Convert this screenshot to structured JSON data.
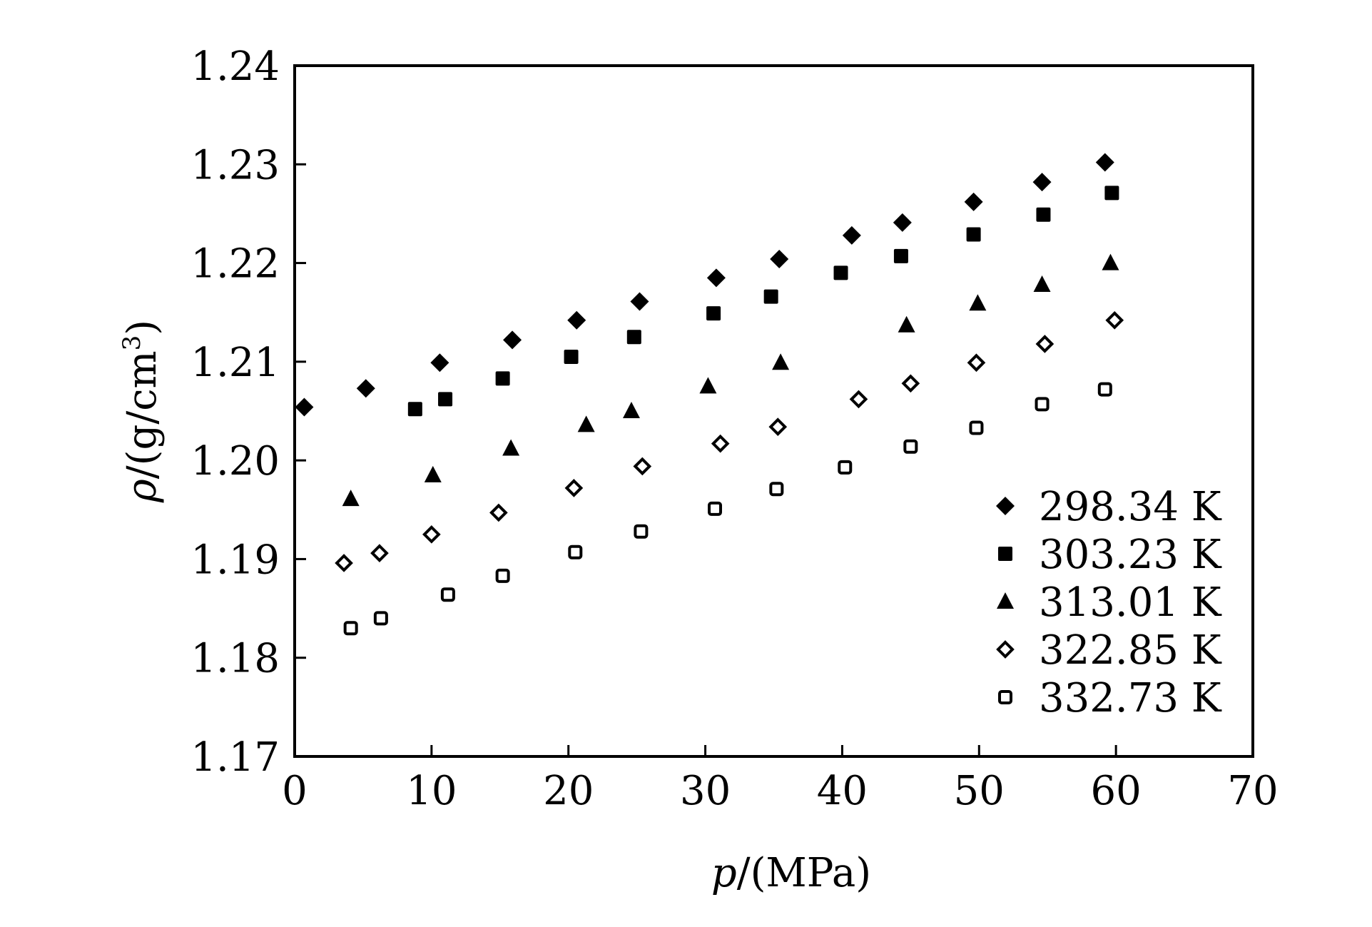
{
  "chart_data": {
    "type": "scatter",
    "title": "",
    "xlabel": {
      "symbol": "p",
      "unit": "/(MPa)"
    },
    "ylabel": {
      "symbol": "ρ",
      "unit_prefix": "/(g/cm",
      "unit_exp": "3",
      "unit_suffix": ")"
    },
    "xlim": [
      0,
      70
    ],
    "ylim": [
      1.17,
      1.24
    ],
    "xticks": [
      "0",
      "10",
      "20",
      "30",
      "40",
      "50",
      "60",
      "70"
    ],
    "yticks": [
      "1.17",
      "1.18",
      "1.19",
      "1.20",
      "1.21",
      "1.22",
      "1.23",
      "1.24"
    ],
    "grid": false,
    "legend_position": "bottom-right",
    "series": [
      {
        "name": "298.34 K",
        "marker": "filled-diamond",
        "x": [
          0.7,
          5.2,
          10.6,
          15.9,
          20.6,
          25.2,
          30.8,
          35.4,
          40.7,
          44.4,
          49.6,
          54.6,
          59.2
        ],
        "y": [
          1.2054,
          1.2073,
          1.2099,
          1.2122,
          1.2142,
          1.2161,
          1.2185,
          1.2204,
          1.2228,
          1.2241,
          1.2262,
          1.2282,
          1.2302
        ]
      },
      {
        "name": "303.23 K",
        "marker": "filled-square",
        "x": [
          8.8,
          11.0,
          15.2,
          20.2,
          24.8,
          30.6,
          34.8,
          39.9,
          44.3,
          49.6,
          54.7,
          59.7
        ],
        "y": [
          1.2052,
          1.2062,
          1.2083,
          1.2105,
          1.2125,
          1.2149,
          1.2166,
          1.219,
          1.2207,
          1.2229,
          1.2249,
          1.2271
        ]
      },
      {
        "name": "313.01 K",
        "marker": "filled-triangle",
        "x": [
          4.1,
          10.1,
          15.8,
          21.3,
          24.6,
          30.2,
          35.5,
          44.7,
          49.9,
          54.6,
          59.6
        ],
        "y": [
          1.1961,
          1.1985,
          1.2012,
          1.2036,
          1.205,
          1.2075,
          1.2099,
          1.2137,
          1.2159,
          1.2178,
          1.22
        ]
      },
      {
        "name": "322.85 K",
        "marker": "open-diamond",
        "x": [
          3.6,
          6.2,
          10.0,
          14.9,
          20.4,
          25.4,
          31.1,
          35.3,
          41.2,
          45.0,
          49.8,
          54.8,
          59.9
        ],
        "y": [
          1.1896,
          1.1906,
          1.1925,
          1.1947,
          1.1972,
          1.1994,
          1.2017,
          1.2034,
          1.2062,
          1.2078,
          1.2099,
          1.2118,
          1.2142
        ]
      },
      {
        "name": "332.73 K",
        "marker": "open-square",
        "x": [
          4.1,
          6.3,
          11.2,
          15.2,
          20.5,
          25.3,
          30.7,
          35.2,
          40.2,
          45.0,
          49.8,
          54.6,
          59.2
        ],
        "y": [
          1.183,
          1.184,
          1.1864,
          1.1883,
          1.1907,
          1.1928,
          1.1951,
          1.1971,
          1.1993,
          1.2014,
          1.2033,
          1.2057,
          1.2072
        ]
      }
    ]
  }
}
